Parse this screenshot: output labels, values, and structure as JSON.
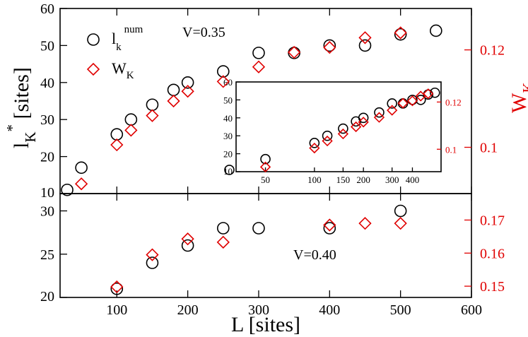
{
  "chart_data": [
    {
      "id": "top",
      "type": "scatter",
      "annotation": "V=0.35",
      "xlabel": "L [sites]",
      "ylabel": "l_K^* [sites]",
      "ylabel_right": "W_K",
      "xlim": [
        20,
        600
      ],
      "ylim": [
        10,
        60
      ],
      "ylim_right": [
        0.0905,
        0.1285
      ],
      "yticks": [
        "10",
        "20",
        "30",
        "40",
        "50",
        "60"
      ],
      "yticks_right": [
        "0.1",
        "0.12"
      ],
      "legend": {
        "location": "top-left",
        "entries": [
          {
            "series": "circle",
            "base": "l",
            "sub": "k",
            "sup": "num"
          },
          {
            "series": "diamond",
            "base": "W",
            "sub": "K",
            "sup": ""
          }
        ]
      },
      "series": [
        {
          "name": "l_k^num",
          "marker": "circle",
          "color": "#000000",
          "axis": "left",
          "x": [
            30,
            50,
            100,
            120,
            150,
            180,
            200,
            250,
            300,
            350,
            400,
            450,
            500,
            550
          ],
          "y": [
            11,
            17,
            26,
            30,
            34,
            38,
            40,
            43,
            48,
            48,
            50,
            50,
            53,
            54
          ]
        },
        {
          "name": "W_K",
          "marker": "diamond",
          "color": "#e00000",
          "axis": "right",
          "x": [
            50,
            100,
            120,
            150,
            180,
            200,
            250,
            300,
            350,
            400,
            450,
            500
          ],
          "y": [
            0.0925,
            0.1005,
            0.1035,
            0.1065,
            0.1095,
            0.1115,
            0.1135,
            0.1165,
            0.1195,
            0.1205,
            0.1225,
            0.1235
          ]
        }
      ]
    },
    {
      "id": "inset",
      "type": "scatter",
      "xscale": "log",
      "xlim": [
        33,
        600
      ],
      "ylim": [
        10,
        60
      ],
      "ylim_right": [
        0.0905,
        0.1285
      ],
      "xticks": [
        {
          "value": 50,
          "label": "50"
        },
        {
          "value": 100,
          "label": "100"
        },
        {
          "value": 150,
          "label": "150"
        },
        {
          "value": 200,
          "label": "200"
        },
        {
          "value": 300,
          "label": "300"
        },
        {
          "value": 400,
          "label": "400"
        }
      ],
      "yticks": [
        "10",
        "20",
        "30",
        "40",
        "50",
        "60"
      ],
      "yticks_right": [
        "0.1",
        "0.12"
      ],
      "series": [
        {
          "name": "l_k^num",
          "marker": "circle",
          "color": "#000000",
          "axis": "left",
          "x": [
            30,
            50,
            100,
            120,
            150,
            180,
            200,
            250,
            300,
            350,
            400,
            450,
            500,
            550
          ],
          "y": [
            11,
            17,
            26,
            30,
            34,
            38,
            40,
            43,
            48,
            48,
            50,
            50,
            53,
            54
          ]
        },
        {
          "name": "W_K",
          "marker": "diamond",
          "color": "#e00000",
          "axis": "right",
          "x": [
            50,
            100,
            120,
            150,
            180,
            200,
            250,
            300,
            350,
            400,
            450,
            500
          ],
          "y": [
            0.0925,
            0.1005,
            0.1035,
            0.1065,
            0.1095,
            0.1115,
            0.1135,
            0.1165,
            0.1195,
            0.1205,
            0.1225,
            0.1235
          ]
        }
      ]
    },
    {
      "id": "bottom",
      "type": "scatter",
      "annotation": "V=0.40",
      "xlim": [
        20,
        600
      ],
      "ylim": [
        20,
        32
      ],
      "ylim_right": [
        0.1466,
        0.178
      ],
      "xticks": [
        "100",
        "200",
        "300",
        "400",
        "500",
        "600"
      ],
      "yticks": [
        "20",
        "25",
        "30"
      ],
      "yticks_right": [
        "0.15",
        "0.16",
        "0.17"
      ],
      "series": [
        {
          "name": "l_k^num",
          "marker": "circle",
          "color": "#000000",
          "axis": "left",
          "x": [
            100,
            150,
            200,
            250,
            300,
            400,
            500
          ],
          "y": [
            21,
            24,
            26,
            28,
            28,
            28,
            30
          ]
        },
        {
          "name": "W_K",
          "marker": "diamond",
          "color": "#e00000",
          "axis": "right",
          "x": [
            100,
            150,
            200,
            250,
            400,
            450,
            500
          ],
          "y": [
            0.1498,
            0.1595,
            0.1643,
            0.1633,
            0.1685,
            0.169,
            0.169
          ]
        }
      ]
    }
  ]
}
